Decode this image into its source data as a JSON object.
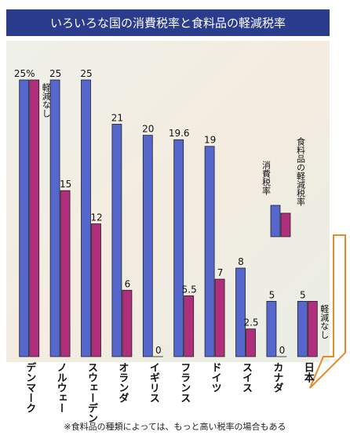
{
  "chart_data": {
    "type": "bar",
    "title": "いろいろな国の消費税率と食料品の軽減税率",
    "categories": [
      "デンマーク",
      "ノルウェー",
      "スウェーデン",
      "オランダ",
      "イギリス",
      "フランス",
      "ドイツ",
      "スイス",
      "カナダ",
      "日本"
    ],
    "series": [
      {
        "name": "消費税率",
        "color": "#5566cc",
        "values": [
          25,
          25,
          25,
          21,
          20,
          19.6,
          19,
          8,
          5,
          5
        ],
        "value_labels": [
          "25%",
          "25",
          "25",
          "21",
          "20",
          "19.6",
          "19",
          "8",
          "5",
          "5"
        ]
      },
      {
        "name": "食料品の軽減税率",
        "color": "#b02f7c",
        "values": [
          25,
          15,
          12,
          6,
          0,
          5.5,
          7,
          2.5,
          0,
          5
        ],
        "value_labels": [
          null,
          "15",
          "12",
          "6",
          "0",
          "5.5",
          "7",
          "2.5",
          "0",
          null
        ]
      }
    ],
    "no_reduction_note": "軽減なし",
    "ylim": [
      0,
      25
    ],
    "footnote": "※食料品の種類によっては、もっと高い税率の場合もある"
  }
}
